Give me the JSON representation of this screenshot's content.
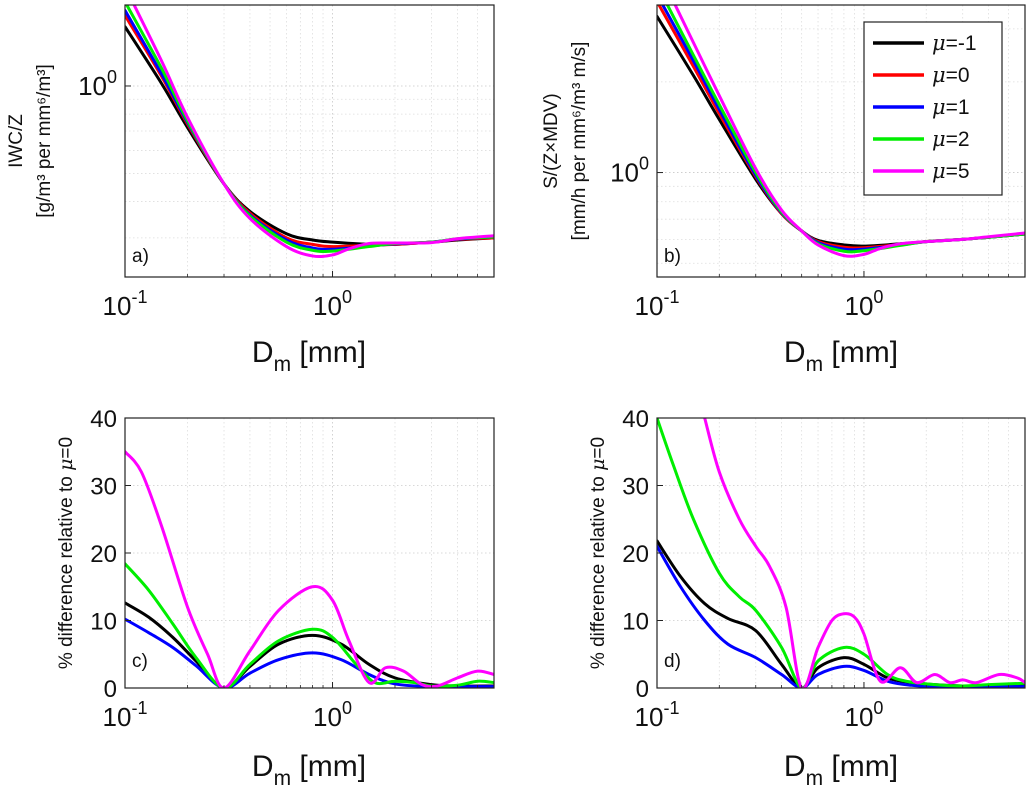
{
  "colors": {
    "mu_m1": "#000000",
    "mu_0": "#ff0000",
    "mu_1": "#0000ff",
    "mu_2": "#00ee00",
    "mu_5": "#ff00ff"
  },
  "legend": {
    "placement": "top-right of panel b",
    "entries": [
      {
        "key": "mu_m1",
        "prefix": "μ",
        "label": "=-1"
      },
      {
        "key": "mu_0",
        "prefix": "μ",
        "label": "=0"
      },
      {
        "key": "mu_1",
        "prefix": "μ",
        "label": "=1"
      },
      {
        "key": "mu_2",
        "prefix": "μ",
        "label": "=2"
      },
      {
        "key": "mu_5",
        "prefix": "μ",
        "label": "=5"
      }
    ]
  },
  "chart_data": [
    {
      "id": "a",
      "type": "line",
      "panel_label": "a)",
      "xlabel": {
        "main": "D",
        "sub": "m",
        "rest": " [mm]"
      },
      "ylabel": {
        "line1": "IWC/Z",
        "line2": "[g/m³ per mm⁶/m³]"
      },
      "xscale": "log",
      "yscale": "log",
      "xlim": [
        0.1,
        6
      ],
      "ylim": [
        0.22,
        1.9
      ],
      "grid": true,
      "xticks": [
        {
          "v": 0.1,
          "base": "10",
          "exp": "-1"
        },
        {
          "v": 1,
          "base": "10",
          "exp": "0"
        }
      ],
      "yticks": [
        {
          "v": 1,
          "base": "10",
          "exp": "0"
        }
      ],
      "series": [
        {
          "key": "mu_m1",
          "x": [
            0.1,
            0.15,
            0.2,
            0.3,
            0.4,
            0.6,
            0.8,
            1,
            1.5,
            2,
            3,
            4,
            6
          ],
          "y": [
            1.6,
            1.02,
            0.72,
            0.46,
            0.37,
            0.31,
            0.295,
            0.29,
            0.285,
            0.285,
            0.29,
            0.295,
            0.3
          ]
        },
        {
          "key": "mu_0",
          "x": [
            0.1,
            0.15,
            0.2,
            0.3,
            0.4,
            0.6,
            0.8,
            1,
            1.5,
            2,
            3,
            4,
            6
          ],
          "y": [
            1.75,
            1.08,
            0.74,
            0.46,
            0.365,
            0.3,
            0.285,
            0.28,
            0.283,
            0.285,
            0.29,
            0.296,
            0.3
          ]
        },
        {
          "key": "mu_1",
          "x": [
            0.1,
            0.15,
            0.2,
            0.3,
            0.4,
            0.6,
            0.8,
            1,
            1.5,
            2,
            3,
            4,
            6
          ],
          "y": [
            1.82,
            1.1,
            0.75,
            0.46,
            0.36,
            0.295,
            0.277,
            0.274,
            0.281,
            0.286,
            0.29,
            0.297,
            0.302
          ]
        },
        {
          "key": "mu_2",
          "x": [
            0.1,
            0.15,
            0.2,
            0.3,
            0.4,
            0.6,
            0.8,
            1,
            1.5,
            2,
            3,
            4,
            6
          ],
          "y": [
            1.95,
            1.15,
            0.76,
            0.46,
            0.357,
            0.29,
            0.272,
            0.27,
            0.28,
            0.287,
            0.29,
            0.298,
            0.302
          ]
        },
        {
          "key": "mu_5",
          "x": [
            0.1,
            0.15,
            0.2,
            0.3,
            0.4,
            0.6,
            0.8,
            1,
            1.2,
            1.5,
            2,
            3,
            4,
            6
          ],
          "y": [
            2.2,
            1.22,
            0.78,
            0.46,
            0.35,
            0.28,
            0.26,
            0.262,
            0.275,
            0.287,
            0.288,
            0.289,
            0.298,
            0.305
          ]
        }
      ]
    },
    {
      "id": "b",
      "type": "line",
      "panel_label": "b)",
      "xlabel": {
        "main": "D",
        "sub": "m",
        "rest": " [mm]"
      },
      "ylabel": {
        "line1": "S/(Z×MDV)",
        "line2": "[mm/h per mm⁶/m³ m/s]"
      },
      "xscale": "log",
      "yscale": "log",
      "xlim": [
        0.1,
        6
      ],
      "ylim": [
        0.45,
        3.6
      ],
      "grid": true,
      "xticks": [
        {
          "v": 0.1,
          "base": "10",
          "exp": "-1"
        },
        {
          "v": 1,
          "base": "10",
          "exp": "0"
        }
      ],
      "yticks": [
        {
          "v": 1,
          "base": "10",
          "exp": "0"
        }
      ],
      "series": [
        {
          "key": "mu_m1",
          "x": [
            0.1,
            0.15,
            0.2,
            0.3,
            0.4,
            0.5,
            0.6,
            0.8,
            1,
            1.5,
            2,
            3,
            4,
            6
          ],
          "y": [
            3.3,
            2.1,
            1.5,
            0.95,
            0.73,
            0.64,
            0.595,
            0.575,
            0.57,
            0.58,
            0.59,
            0.6,
            0.61,
            0.625
          ]
        },
        {
          "key": "mu_0",
          "x": [
            0.1,
            0.15,
            0.2,
            0.3,
            0.4,
            0.5,
            0.6,
            0.8,
            1,
            1.5,
            2,
            3,
            4,
            6
          ],
          "y": [
            3.7,
            2.25,
            1.57,
            0.97,
            0.73,
            0.64,
            0.59,
            0.565,
            0.563,
            0.577,
            0.59,
            0.6,
            0.61,
            0.625
          ]
        },
        {
          "key": "mu_1",
          "x": [
            0.1,
            0.15,
            0.2,
            0.3,
            0.4,
            0.5,
            0.6,
            0.8,
            1,
            1.5,
            2,
            3,
            4,
            6
          ],
          "y": [
            3.9,
            2.35,
            1.62,
            0.98,
            0.735,
            0.64,
            0.585,
            0.557,
            0.557,
            0.575,
            0.59,
            0.6,
            0.61,
            0.625
          ]
        },
        {
          "key": "mu_2",
          "x": [
            0.1,
            0.15,
            0.2,
            0.3,
            0.4,
            0.5,
            0.6,
            0.8,
            1,
            1.5,
            2,
            3,
            4,
            6
          ],
          "y": [
            4.2,
            2.45,
            1.68,
            1.0,
            0.74,
            0.64,
            0.58,
            0.548,
            0.55,
            0.573,
            0.59,
            0.6,
            0.61,
            0.625
          ]
        },
        {
          "key": "mu_5",
          "x": [
            0.1,
            0.15,
            0.2,
            0.3,
            0.4,
            0.5,
            0.6,
            0.8,
            1,
            1.2,
            1.5,
            2,
            3,
            4,
            6
          ],
          "y": [
            4.8,
            2.7,
            1.8,
            1.03,
            0.75,
            0.64,
            0.575,
            0.53,
            0.535,
            0.56,
            0.58,
            0.59,
            0.6,
            0.612,
            0.63
          ]
        }
      ]
    },
    {
      "id": "c",
      "type": "line",
      "panel_label": "c)",
      "xlabel": {
        "main": "D",
        "sub": "m",
        "rest": " [mm]"
      },
      "ylabel": {
        "line1": "% difference relative to ",
        "mu": "μ",
        "line1b": "=0"
      },
      "xscale": "log",
      "yscale": "linear",
      "xlim": [
        0.1,
        6
      ],
      "ylim": [
        0,
        40
      ],
      "grid": true,
      "xticks": [
        {
          "v": 0.1,
          "base": "10",
          "exp": "-1"
        },
        {
          "v": 1,
          "base": "10",
          "exp": "0"
        }
      ],
      "yticks": [
        {
          "v": 0,
          "label": "0"
        },
        {
          "v": 10,
          "label": "10"
        },
        {
          "v": 20,
          "label": "20"
        },
        {
          "v": 30,
          "label": "30"
        },
        {
          "v": 40,
          "label": "40"
        }
      ],
      "series": [
        {
          "key": "mu_m1",
          "x": [
            0.1,
            0.13,
            0.17,
            0.22,
            0.3,
            0.4,
            0.55,
            0.8,
            1.1,
            1.5,
            2,
            3,
            4,
            6
          ],
          "y": [
            12.6,
            10.5,
            7.5,
            4.0,
            0,
            3.2,
            6.5,
            7.8,
            6.5,
            3.5,
            1.5,
            0.5,
            0.3,
            0.3
          ]
        },
        {
          "key": "mu_1",
          "x": [
            0.1,
            0.13,
            0.17,
            0.22,
            0.3,
            0.4,
            0.55,
            0.8,
            1.1,
            1.5,
            2,
            3,
            4,
            6
          ],
          "y": [
            10.2,
            8.2,
            6.0,
            3.3,
            0,
            2.2,
            4.2,
            5.2,
            4.2,
            2.0,
            0.6,
            0.2,
            0.2,
            0.2
          ]
        },
        {
          "key": "mu_2",
          "x": [
            0.1,
            0.13,
            0.17,
            0.22,
            0.3,
            0.4,
            0.55,
            0.8,
            1.0,
            1.3,
            1.6,
            2,
            2.5,
            3,
            4,
            5,
            6
          ],
          "y": [
            18.4,
            14.5,
            9.5,
            4.5,
            0,
            3.5,
            7.0,
            8.7,
            7.5,
            3.5,
            0.8,
            1.0,
            0.8,
            0.3,
            0.4,
            1.0,
            0.8
          ]
        },
        {
          "key": "mu_5",
          "x": [
            0.1,
            0.12,
            0.15,
            0.2,
            0.25,
            0.3,
            0.4,
            0.55,
            0.8,
            1.0,
            1.2,
            1.5,
            1.8,
            2.2,
            2.7,
            3.2,
            4,
            5,
            6
          ],
          "y": [
            35,
            32,
            24,
            12,
            5,
            0,
            5.5,
            11.5,
            15,
            13,
            7,
            0.8,
            3,
            2.5,
            0.5,
            0.3,
            1.5,
            2.5,
            2
          ]
        }
      ]
    },
    {
      "id": "d",
      "type": "line",
      "panel_label": "d)",
      "xlabel": {
        "main": "D",
        "sub": "m",
        "rest": " [mm]"
      },
      "ylabel": {
        "line1": "% difference relative to ",
        "mu": "μ",
        "line1b": "=0"
      },
      "xscale": "log",
      "yscale": "linear",
      "xlim": [
        0.1,
        6
      ],
      "ylim": [
        0,
        40
      ],
      "grid": true,
      "xticks": [
        {
          "v": 0.1,
          "base": "10",
          "exp": "-1"
        },
        {
          "v": 1,
          "base": "10",
          "exp": "0"
        }
      ],
      "yticks": [
        {
          "v": 0,
          "label": "0"
        },
        {
          "v": 10,
          "label": "10"
        },
        {
          "v": 20,
          "label": "20"
        },
        {
          "v": 30,
          "label": "30"
        },
        {
          "v": 40,
          "label": "40"
        }
      ],
      "series": [
        {
          "key": "mu_m1",
          "x": [
            0.1,
            0.13,
            0.17,
            0.22,
            0.3,
            0.4,
            0.5,
            0.6,
            0.8,
            1.0,
            1.3,
            1.7,
            2.2,
            3,
            4,
            6
          ],
          "y": [
            21.8,
            16.5,
            12.5,
            10.3,
            8.5,
            3.5,
            0,
            3.0,
            4.5,
            3.5,
            1.5,
            0.8,
            0.5,
            0.3,
            0.3,
            0.3
          ]
        },
        {
          "key": "mu_1",
          "x": [
            0.1,
            0.13,
            0.17,
            0.22,
            0.3,
            0.4,
            0.5,
            0.6,
            0.8,
            1.0,
            1.3,
            1.7,
            2.2,
            3,
            4,
            6
          ],
          "y": [
            21,
            15,
            10,
            6.5,
            4.5,
            2.0,
            0,
            2.0,
            3.2,
            2.6,
            1.0,
            0.4,
            0.2,
            0.2,
            0.2,
            0.2
          ]
        },
        {
          "key": "mu_2",
          "x": [
            0.1,
            0.12,
            0.15,
            0.2,
            0.25,
            0.3,
            0.4,
            0.5,
            0.6,
            0.8,
            1.0,
            1.3,
            1.6,
            2.2,
            3,
            4,
            6
          ],
          "y": [
            40,
            33,
            25,
            17,
            13.5,
            11.5,
            6,
            0,
            4,
            6,
            5,
            2,
            1,
            0.5,
            0.3,
            0.5,
            0.7
          ]
        },
        {
          "key": "mu_5",
          "x": [
            0.17,
            0.2,
            0.25,
            0.3,
            0.35,
            0.42,
            0.5,
            0.6,
            0.7,
            0.8,
            0.9,
            1.0,
            1.2,
            1.5,
            1.8,
            2.2,
            2.6,
            3,
            3.5,
            4.5,
            5.5,
            6
          ],
          "y": [
            40,
            32,
            25,
            21,
            18,
            12,
            0,
            6,
            10,
            11,
            10.5,
            8,
            1,
            3,
            0.8,
            2,
            0.8,
            1.2,
            0.8,
            2,
            1.5,
            0.8
          ]
        }
      ]
    }
  ]
}
